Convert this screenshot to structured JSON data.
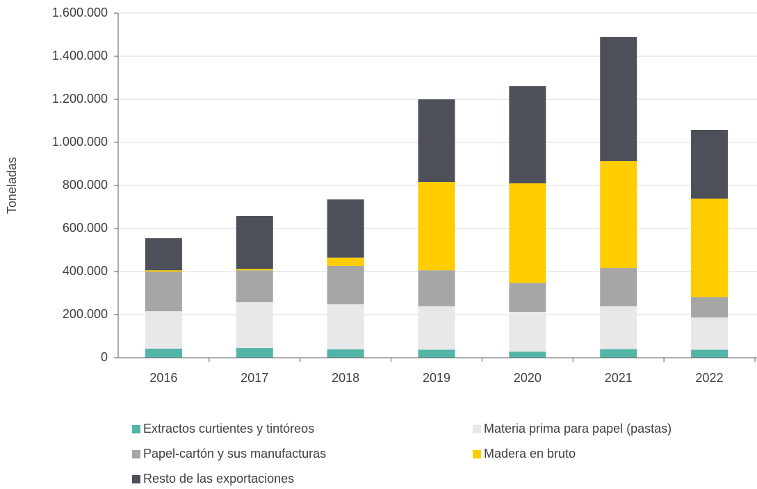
{
  "chart_data": {
    "type": "stacked_bar",
    "y_axis_label": "Toneladas",
    "categories": [
      "2016",
      "2017",
      "2018",
      "2019",
      "2020",
      "2021",
      "2022"
    ],
    "series": [
      {
        "name": "Extractos curtientes y tintóreos",
        "color": "#52b5a8",
        "values": [
          42000,
          45000,
          39000,
          37000,
          28000,
          40000,
          37000
        ]
      },
      {
        "name": "Materia prima para papel (pastas)",
        "color": "#e8e8e8",
        "values": [
          174000,
          213000,
          209000,
          202000,
          185000,
          199000,
          150000
        ]
      },
      {
        "name": "Papel-cartón y sus manufacturas",
        "color": "#a6a6a6",
        "values": [
          184000,
          148000,
          178000,
          167000,
          135000,
          177000,
          94000
        ]
      },
      {
        "name": "Madera en bruto",
        "color": "#ffcc00",
        "values": [
          6000,
          7000,
          39000,
          410000,
          462000,
          497000,
          458000
        ]
      },
      {
        "name": "Resto de las exportaciones",
        "color": "#4d5059",
        "values": [
          149000,
          245000,
          270000,
          384000,
          451000,
          577000,
          319000
        ]
      }
    ],
    "ylim": [
      0,
      1600000
    ],
    "yticks": [
      0,
      {
        "value": 200000,
        "label": "200.000"
      },
      {
        "value": 400000,
        "label": "400.000"
      },
      {
        "value": 600000,
        "label": "600.000"
      },
      {
        "value": 800000,
        "label": "800.000"
      },
      {
        "value": 1000000,
        "label": "1.000.000"
      },
      {
        "value": 1200000,
        "label": "1.200.000"
      },
      {
        "value": 1400000,
        "label": "1.400.000"
      },
      {
        "value": 1600000,
        "label": "1.600.000"
      }
    ],
    "grid": true
  }
}
